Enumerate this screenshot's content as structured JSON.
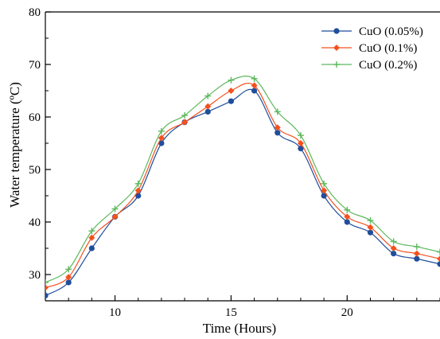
{
  "chart_data": {
    "type": "line",
    "xlabel": "Time (Hours)",
    "ylabel": "Water temperature (ºC)",
    "xlim": [
      7,
      24
    ],
    "ylim": [
      25,
      80
    ],
    "xticks": [
      10,
      15,
      20
    ],
    "yticks": [
      30,
      40,
      50,
      60,
      70,
      80
    ],
    "grid": false,
    "legend_position": "top-right",
    "x": [
      7,
      8,
      9,
      10,
      11,
      12,
      13,
      14,
      15,
      16,
      17,
      18,
      19,
      20,
      21,
      22,
      23,
      24
    ],
    "series": [
      {
        "name": "CuO (0.05%)",
        "marker": "circle",
        "color": "#1f4e9c",
        "values": [
          26,
          28.5,
          35,
          41,
          45,
          55,
          59,
          61,
          63,
          65,
          57,
          54,
          45,
          40,
          38,
          34,
          33,
          32
        ]
      },
      {
        "name": "CuO (0.1%)",
        "marker": "diamond",
        "color": "#f4511e",
        "values": [
          27.5,
          29.5,
          37,
          41,
          46,
          56,
          59,
          62,
          65,
          66,
          58,
          55,
          46,
          41,
          39,
          35,
          34,
          33
        ]
      },
      {
        "name": "CuO (0.2%)",
        "marker": "plus",
        "color": "#5cb85c",
        "values": [
          28.5,
          31,
          38.3,
          42.5,
          47.3,
          57.3,
          60.3,
          64,
          67,
          67.3,
          61,
          56.5,
          47.3,
          42.3,
          40.3,
          36.3,
          35.3,
          34.3
        ]
      }
    ]
  }
}
